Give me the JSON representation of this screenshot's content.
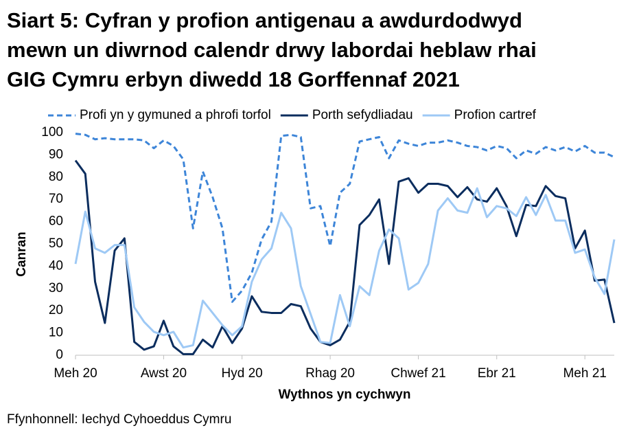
{
  "chart_data": {
    "type": "line",
    "title": [
      "Siart 5: Cyfran y profion antigenau a awdurdodwyd",
      "mewn un diwrnod calendr drwy labordai heblaw rhai",
      "GIG Cymru erbyn diwedd 18 Gorffennaf 2021"
    ],
    "y_label": "Canran",
    "x_label": "Wythnos yn cychwyn",
    "source": "Ffynhonnell: Iechyd Cyhoeddus Cymru",
    "categories": [
      "Meh 20",
      null,
      null,
      null,
      null,
      null,
      null,
      null,
      null,
      "Awst 20",
      null,
      null,
      null,
      null,
      null,
      null,
      null,
      "Hyd 20",
      null,
      null,
      null,
      null,
      null,
      null,
      null,
      null,
      "Rhag 20",
      null,
      null,
      null,
      null,
      null,
      null,
      null,
      null,
      "Chwef 21",
      null,
      null,
      null,
      null,
      null,
      null,
      null,
      "Ebr 21",
      null,
      null,
      null,
      null,
      null,
      null,
      null,
      null,
      "Meh 21",
      null,
      null,
      null
    ],
    "ylim": [
      0,
      100
    ],
    "yticks": [
      0,
      10,
      20,
      30,
      40,
      50,
      60,
      70,
      80,
      90,
      100
    ],
    "series": [
      {
        "name": "Profi yn y gymuned a phrofi torfol",
        "color": "#3d85d8",
        "style": "dashed",
        "values": [
          99.5,
          99,
          97,
          97.5,
          97,
          97,
          97,
          96.5,
          93,
          96.5,
          94,
          88,
          57,
          82.5,
          71,
          57,
          24,
          29,
          37,
          52,
          60,
          98.5,
          99,
          98,
          66,
          67,
          49,
          73,
          77,
          96,
          97,
          98,
          88.5,
          96.5,
          95,
          94,
          95.5,
          95.5,
          96.5,
          95.5,
          94,
          93.5,
          92,
          94,
          93,
          88.5,
          92,
          90.5,
          93.5,
          92,
          93.5,
          91.5,
          94,
          91,
          91,
          89
        ]
      },
      {
        "name": "Porth sefydliadau",
        "color": "#0b2d5e",
        "style": "solid",
        "values": [
          87.5,
          81.5,
          33,
          14.5,
          47,
          52.5,
          6,
          2.5,
          4,
          15.5,
          4,
          0.5,
          0.5,
          7,
          3.5,
          13,
          5.5,
          12,
          26.5,
          19.5,
          19,
          19,
          23,
          22,
          12,
          6,
          4.5,
          7,
          15,
          58.5,
          63,
          70,
          41,
          78,
          79.5,
          73,
          77,
          77,
          76,
          71,
          75.5,
          70,
          69,
          75,
          67,
          53.5,
          67.5,
          67,
          76,
          71.5,
          70.5,
          48,
          56,
          33.5,
          34,
          14.5
        ]
      },
      {
        "name": "Profion cartref",
        "color": "#9ec9f5",
        "style": "solid",
        "values": [
          41,
          64.5,
          48,
          46,
          49.5,
          49.5,
          21.5,
          15,
          10.5,
          9,
          10.5,
          3.5,
          4.5,
          24.5,
          19,
          13.5,
          9,
          13,
          33,
          43,
          48,
          64,
          57,
          31,
          18.5,
          6,
          5.5,
          27,
          13,
          31,
          27,
          47,
          56.5,
          52.5,
          29.5,
          32.5,
          41,
          65,
          70.5,
          65,
          64,
          75,
          62,
          67,
          66,
          62.5,
          71,
          63,
          72,
          60.5,
          60.5,
          46,
          47.5,
          35,
          27.5,
          52
        ]
      }
    ]
  }
}
